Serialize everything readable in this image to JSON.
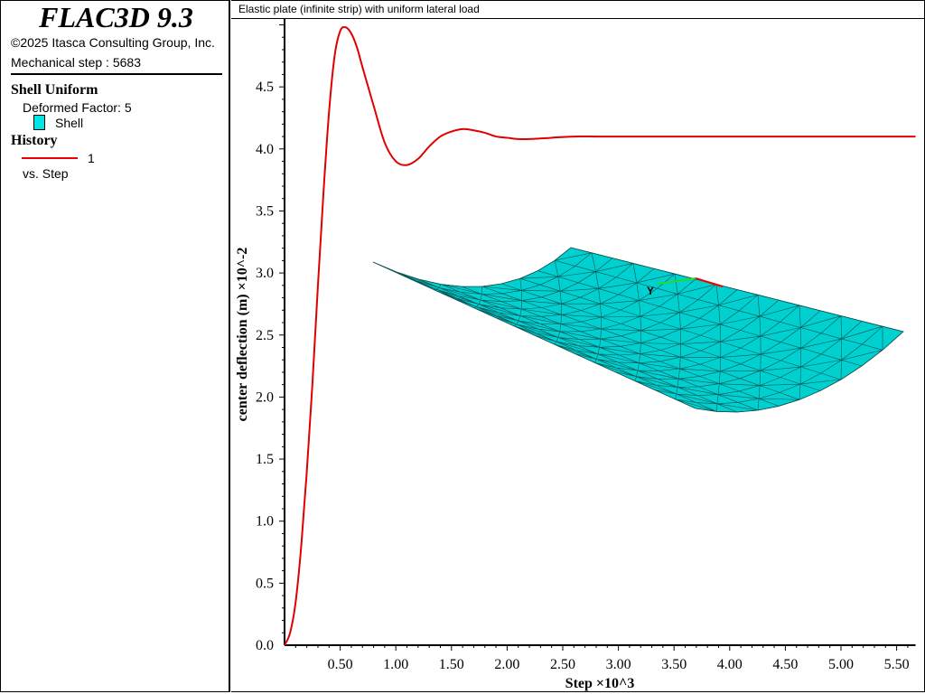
{
  "legend": {
    "app_title": "FLAC3D 9.3",
    "copyright": "©2025 Itasca Consulting Group, Inc.",
    "step_status": "Mechanical step : 5683",
    "plot_name": "Shell Uniform",
    "deformed_factor": "Deformed Factor: 5",
    "shell_label": "Shell",
    "history_heading": "History",
    "history_id": "1",
    "vs_label": "vs. Step"
  },
  "plot": {
    "title": "Elastic plate (infinite strip) with uniform lateral load",
    "axis_label_Y": "Y"
  },
  "colors": {
    "history": "#e00000",
    "shell": "#00d0d0"
  },
  "chart_data": {
    "type": "line",
    "xlabel": "Step ×10^3",
    "ylabel": "center deflection (m) ×10^-2",
    "xlim": [
      0,
      5.67
    ],
    "ylim": [
      0,
      5.05
    ],
    "xticks": [
      "0.50",
      "1.00",
      "1.50",
      "2.00",
      "2.50",
      "3.00",
      "3.50",
      "4.00",
      "4.50",
      "5.00",
      "5.50"
    ],
    "yticks": [
      "0.0",
      "0.5",
      "1.0",
      "1.5",
      "2.0",
      "2.5",
      "3.0",
      "3.5",
      "4.0",
      "4.5"
    ],
    "series": [
      {
        "name": "1",
        "x": [
          0,
          0.05,
          0.1,
          0.15,
          0.2,
          0.25,
          0.3,
          0.35,
          0.4,
          0.45,
          0.5,
          0.55,
          0.6,
          0.65,
          0.7,
          0.8,
          0.9,
          1.0,
          1.1,
          1.2,
          1.3,
          1.4,
          1.5,
          1.6,
          1.7,
          1.8,
          1.9,
          2.0,
          2.1,
          2.2,
          2.4,
          2.6,
          2.8,
          3.0,
          3.5,
          4.0,
          4.5,
          5.0,
          5.67
        ],
        "y": [
          0,
          0.1,
          0.35,
          0.8,
          1.4,
          2.1,
          2.9,
          3.65,
          4.3,
          4.75,
          4.95,
          4.98,
          4.93,
          4.82,
          4.66,
          4.35,
          4.05,
          3.9,
          3.87,
          3.92,
          4.02,
          4.1,
          4.14,
          4.16,
          4.15,
          4.13,
          4.1,
          4.09,
          4.08,
          4.08,
          4.09,
          4.1,
          4.1,
          4.1,
          4.1,
          4.1,
          4.1,
          4.1,
          4.1
        ]
      }
    ]
  }
}
